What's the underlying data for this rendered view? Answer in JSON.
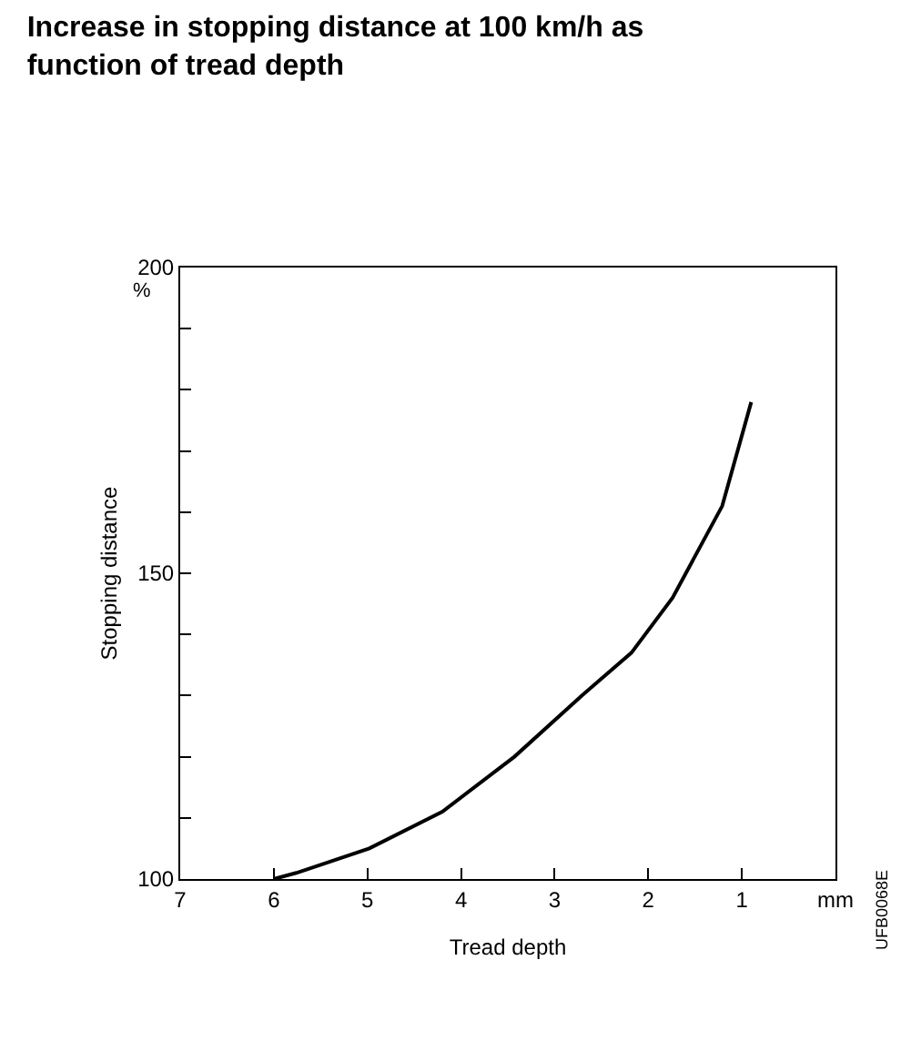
{
  "chart_data": {
    "type": "line",
    "title": "Increase in stopping distance at 100 km/h as\nfunction of tread depth",
    "xlabel": "Tread depth",
    "ylabel": "Stopping distance",
    "annotations": [
      "%",
      "UFB0068E"
    ],
    "series": [
      {
        "color": "#000000",
        "x": [
          6.0,
          5.76,
          4.98,
          4.2,
          3.43,
          2.71,
          2.18,
          1.74,
          1.21,
          0.9
        ],
        "values": [
          100,
          101,
          105,
          111,
          120,
          130,
          137,
          146,
          161,
          178
        ]
      }
    ],
    "xlim": [
      7,
      0
    ],
    "xticks": [
      7,
      6,
      5,
      4,
      3,
      2,
      1,
      {
        "value": 0,
        "label": "mm"
      }
    ],
    "ylim": [
      100,
      200
    ],
    "yticks": [
      100,
      {
        "value": 110,
        "label": null
      },
      {
        "value": 120,
        "label": null
      },
      {
        "value": 130,
        "label": null
      },
      {
        "value": 140,
        "label": null
      },
      150,
      {
        "value": 160,
        "label": null
      },
      {
        "value": 170,
        "label": null
      },
      {
        "value": 180,
        "label": null
      },
      {
        "value": 190,
        "label": null
      },
      200
    ],
    "marker": "none",
    "line_style": "solid"
  }
}
